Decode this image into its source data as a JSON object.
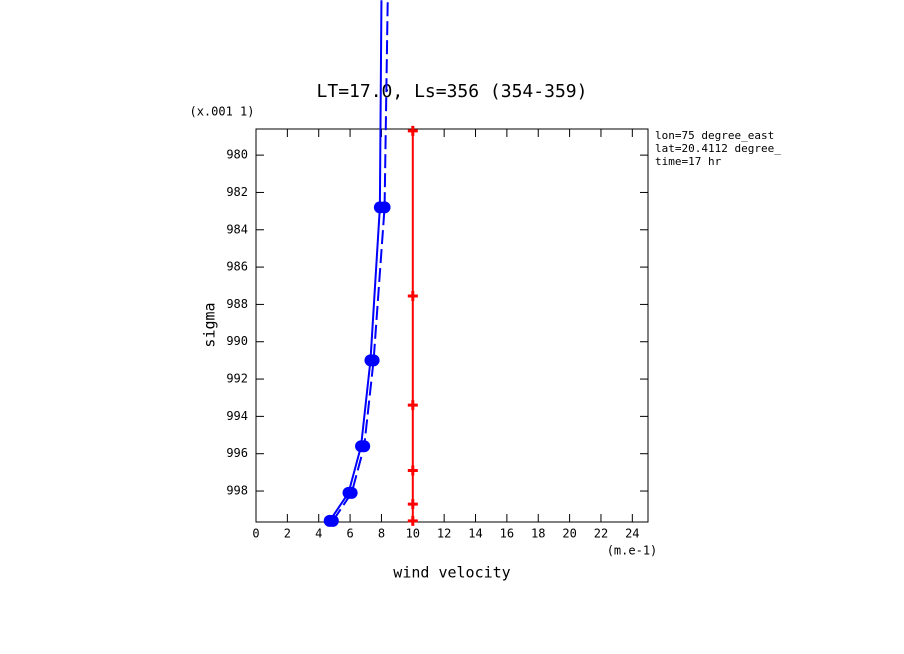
{
  "chart_data": {
    "type": "line",
    "title": "LT=17.0, Ls=356 (354-359)",
    "y_label": "sigma",
    "y_unit": "(x.001 1)",
    "x_label": "wind velocity",
    "x_unit": "(m.e-1)",
    "annotations": [
      "lon=75 degree_east",
      "lat=20.4112 degree_",
      "time=17 hr"
    ],
    "xlim": [
      0,
      25
    ],
    "xticks": [
      0,
      2,
      4,
      6,
      8,
      10,
      12,
      14,
      16,
      18,
      20,
      22,
      24
    ],
    "ylim": [
      978.6,
      999.66
    ],
    "y_inverted": true,
    "yticks": [
      980,
      982,
      984,
      986,
      988,
      990,
      992,
      994,
      996,
      998
    ],
    "series": [
      {
        "color": "#0000ff",
        "dash": "solid",
        "marker": "dot",
        "x": [
          4.7,
          5.9,
          6.7,
          7.3,
          7.9,
          8.0
        ],
        "values": [
          999.6,
          998.1,
          995.6,
          991.0,
          982.8,
          971.7
        ]
      },
      {
        "color": "#0000ff",
        "dash": "dashed",
        "marker": "dot",
        "x": [
          4.9,
          6.1,
          6.9,
          7.5,
          8.2,
          8.4
        ],
        "values": [
          999.6,
          998.1,
          995.6,
          991.0,
          982.8,
          971.7
        ]
      },
      {
        "color": "#ff0000",
        "dash": "solid",
        "marker": "plus",
        "x": [
          10,
          10,
          10,
          10,
          10,
          10
        ],
        "values": [
          978.7,
          987.55,
          993.4,
          996.9,
          998.7,
          999.6
        ]
      }
    ]
  }
}
